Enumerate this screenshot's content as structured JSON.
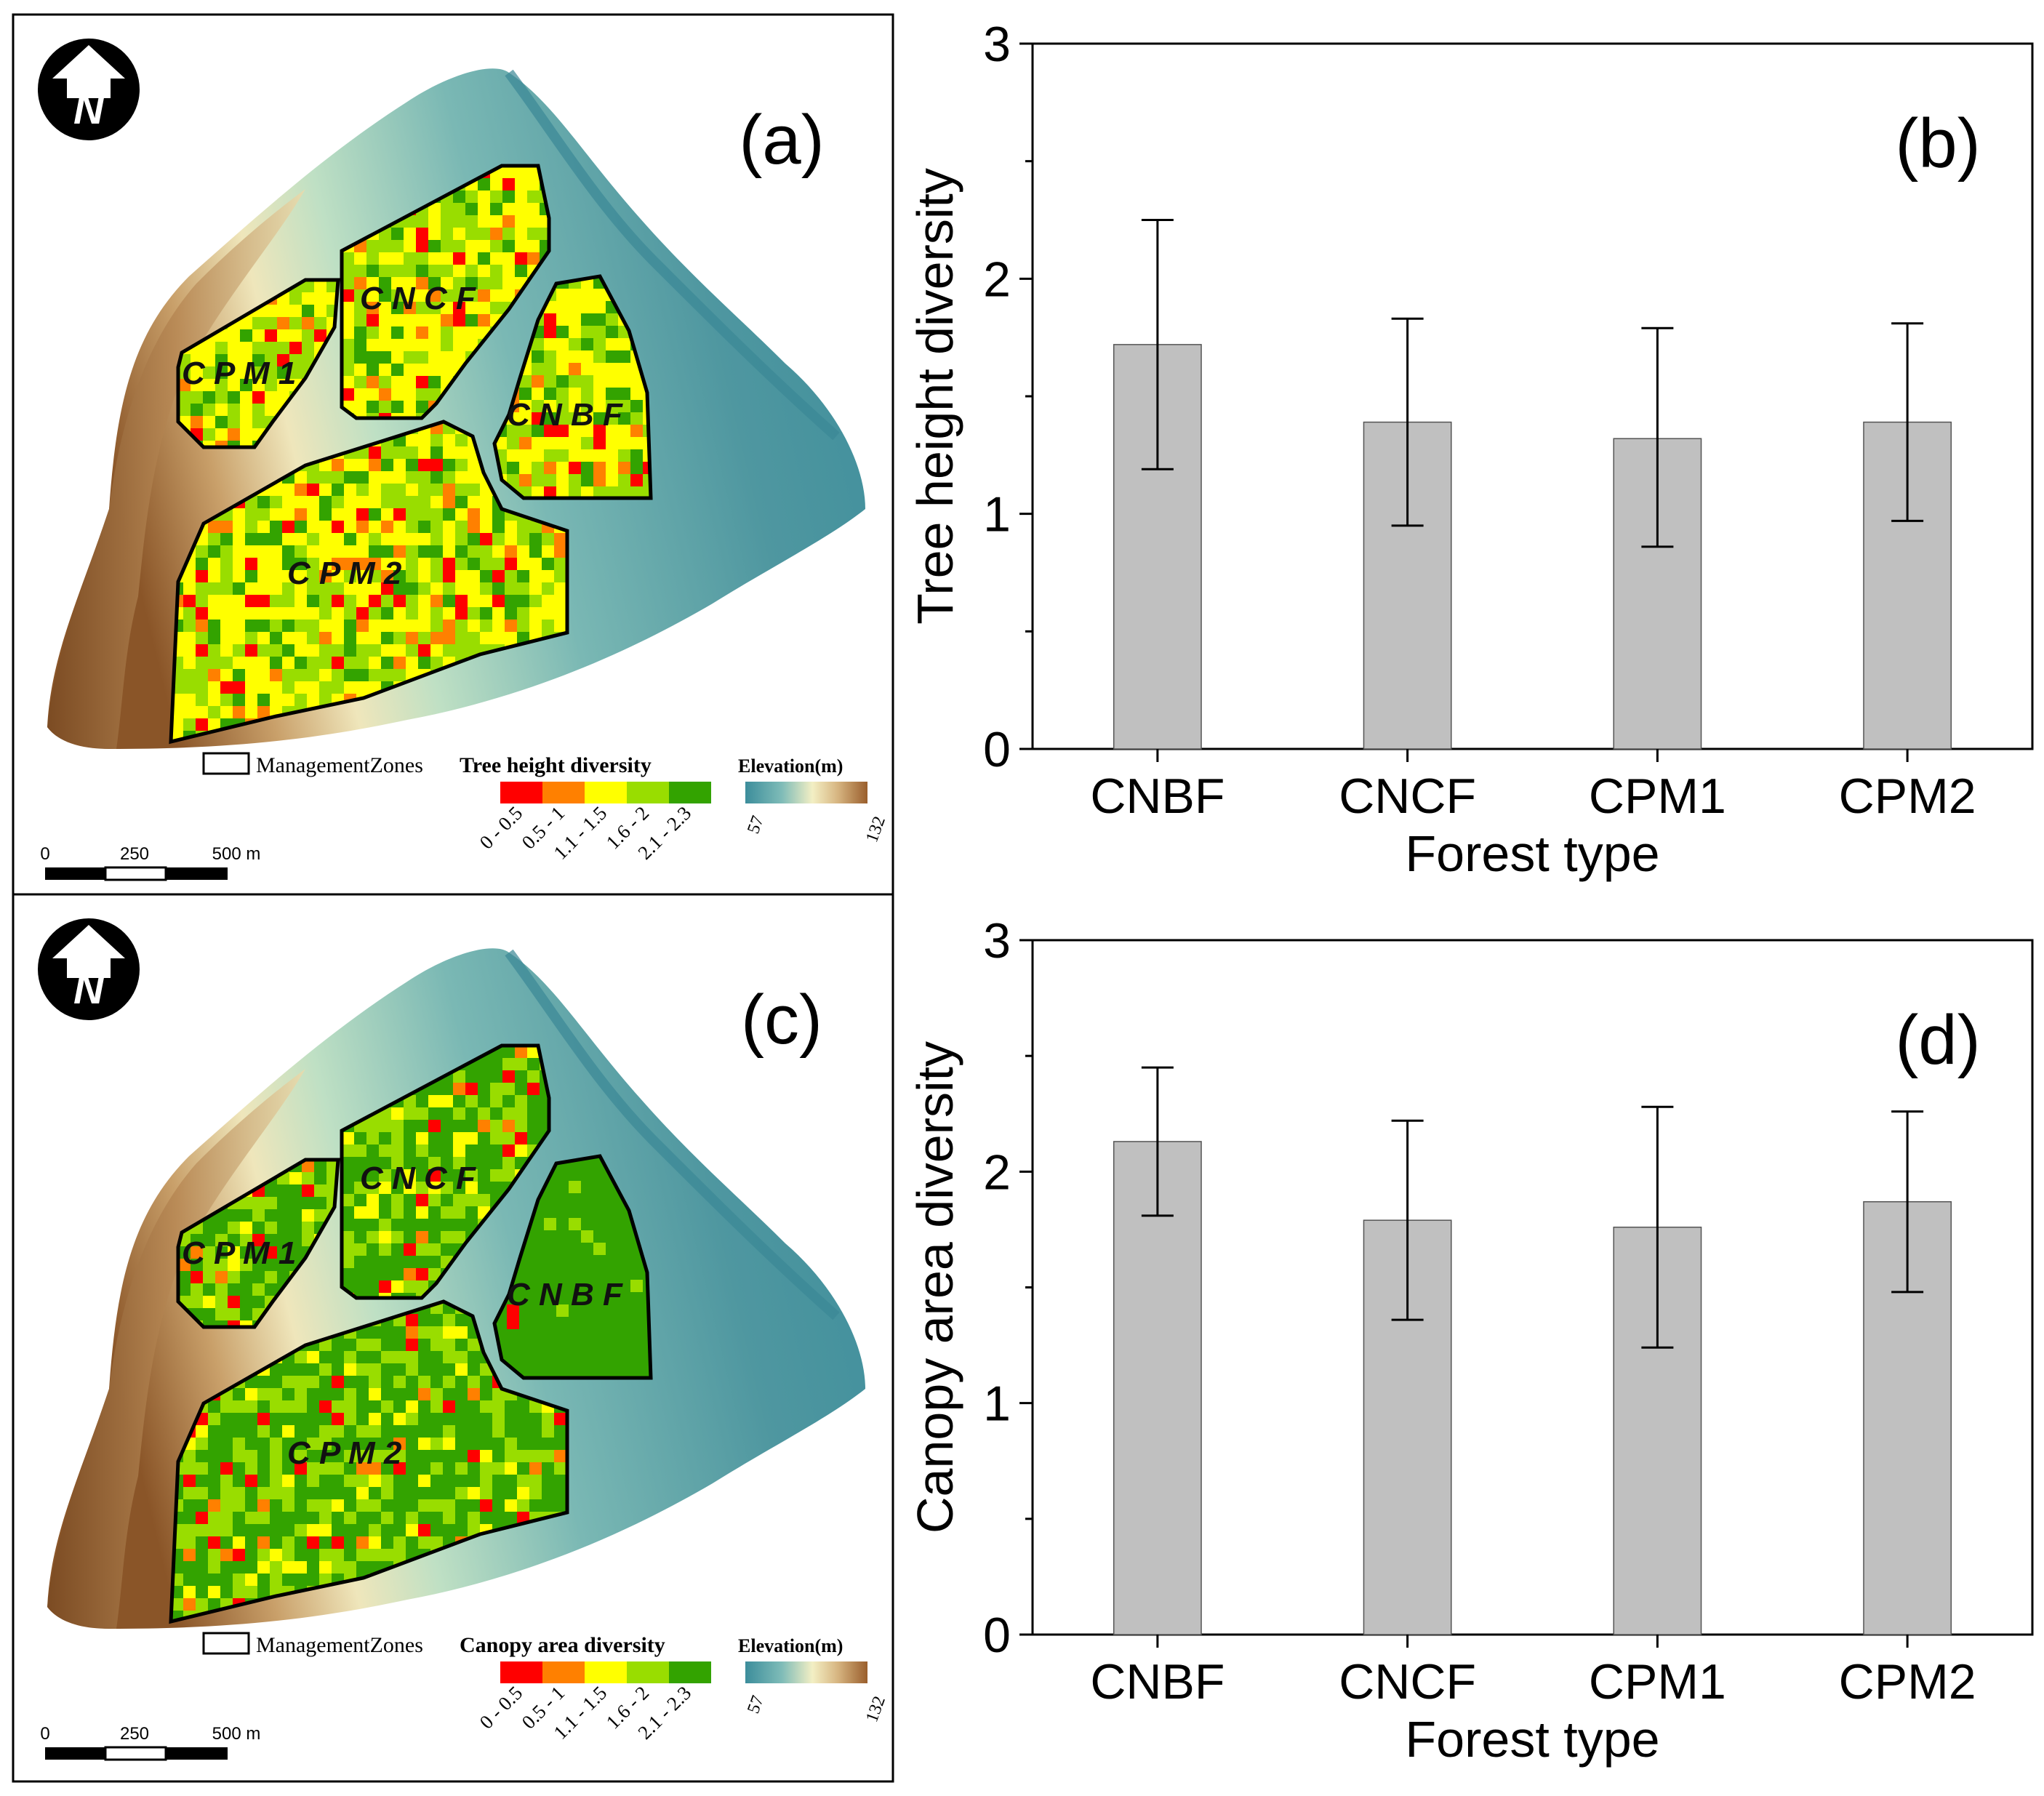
{
  "maps": [
    {
      "panel_label": "(a)",
      "legend_title": "Tree height diversity",
      "zones_label": "ManagementZones",
      "elevation_title": "Elevation(m)",
      "elevation_min": "57",
      "elevation_max": "132",
      "class_labels": [
        "0 - 0.5",
        "0.5 - 1",
        "1.1 - 1.5",
        "1.6 - 2",
        "2.1 - 2.3"
      ],
      "class_colors": [
        "#ff0000",
        "#ff8000",
        "#ffff00",
        "#99dd00",
        "#33a300"
      ],
      "zones": [
        {
          "name": "CPM1",
          "display": "C P M 1"
        },
        {
          "name": "CNCF",
          "display": "C N C F"
        },
        {
          "name": "CNBF",
          "display": "C N B F"
        },
        {
          "name": "CPM2",
          "display": "C P M 2"
        }
      ],
      "scale_labels": [
        "0",
        "250",
        "500 m"
      ],
      "north": "N"
    },
    {
      "panel_label": "(c)",
      "legend_title": "Canopy area diversity",
      "zones_label": "ManagementZones",
      "elevation_title": "Elevation(m)",
      "elevation_min": "57",
      "elevation_max": "132",
      "class_labels": [
        "0 - 0.5",
        "0.5 - 1",
        "1.1 - 1.5",
        "1.6 - 2",
        "2.1 - 2.3"
      ],
      "class_colors": [
        "#ff0000",
        "#ff8000",
        "#ffff00",
        "#99dd00",
        "#33a300"
      ],
      "zones": [
        {
          "name": "CPM1",
          "display": "C P M 1"
        },
        {
          "name": "CNCF",
          "display": "C N C F"
        },
        {
          "name": "CNBF",
          "display": "C N B F"
        },
        {
          "name": "CPM2",
          "display": "C P M 2"
        }
      ],
      "scale_labels": [
        "0",
        "250",
        "500 m"
      ],
      "north": "N"
    }
  ],
  "chart_data": [
    {
      "panel_label": "(b)",
      "type": "bar",
      "categories": [
        "CNBF",
        "CNCF",
        "CPM1",
        "CPM2"
      ],
      "values": [
        1.72,
        1.39,
        1.32,
        1.39
      ],
      "error_upper": [
        2.25,
        1.83,
        1.79,
        1.81
      ],
      "error_lower": [
        1.19,
        0.95,
        0.86,
        0.97
      ],
      "xlabel": "Forest type",
      "ylabel": "Tree height diversity",
      "ylim": [
        0,
        3
      ],
      "yticks": [
        "0",
        "1",
        "2",
        "3"
      ],
      "bar_color": "#c0c0c0"
    },
    {
      "panel_label": "(d)",
      "type": "bar",
      "categories": [
        "CNBF",
        "CNCF",
        "CPM1",
        "CPM2"
      ],
      "values": [
        2.13,
        1.79,
        1.76,
        1.87
      ],
      "error_upper": [
        2.45,
        2.22,
        2.28,
        2.26
      ],
      "error_lower": [
        1.81,
        1.36,
        1.24,
        1.48
      ],
      "xlabel": "Forest type",
      "ylabel": "Canopy area diversity",
      "ylim": [
        0,
        3
      ],
      "yticks": [
        "0",
        "1",
        "2",
        "3"
      ],
      "bar_color": "#c0c0c0"
    }
  ]
}
